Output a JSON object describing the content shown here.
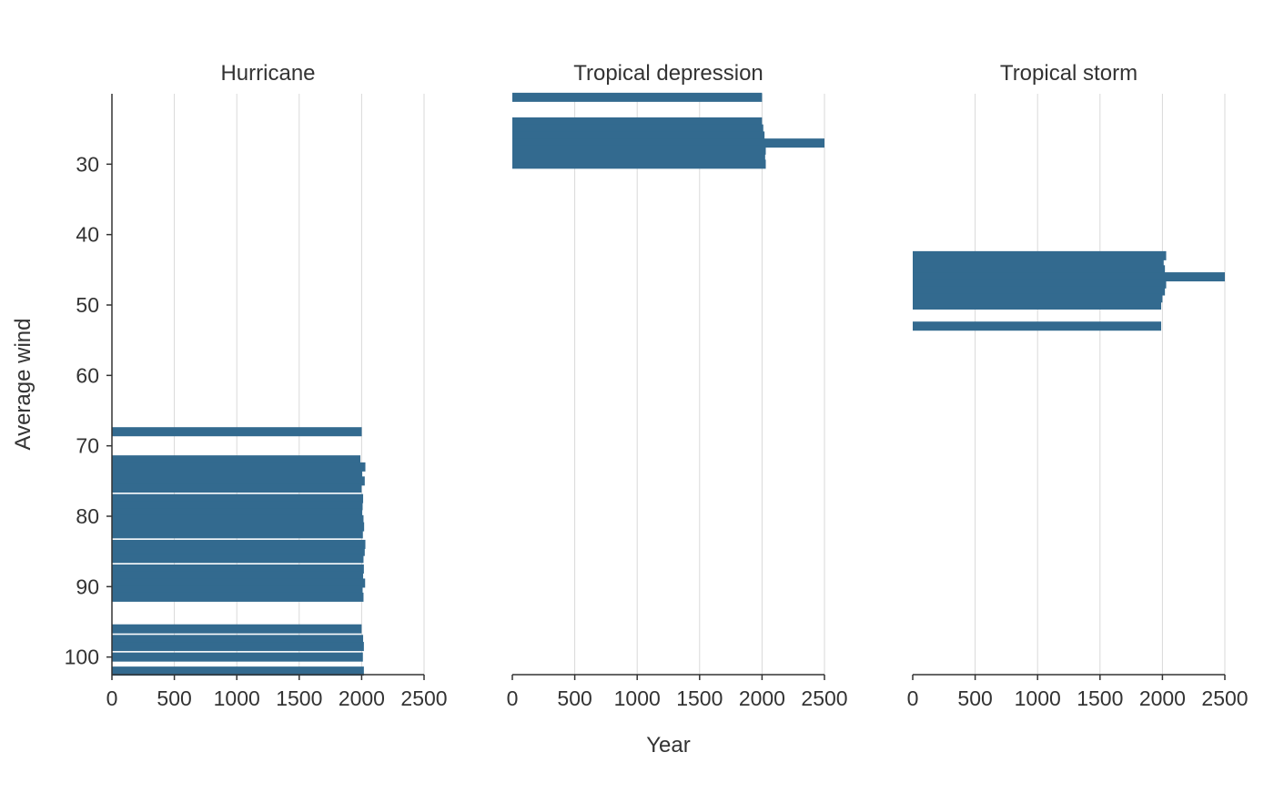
{
  "chart_data": {
    "type": "bar",
    "orientation": "horizontal",
    "xlabel": "Year",
    "ylabel": "Average wind",
    "xlim": [
      0,
      2500
    ],
    "ylim": [
      102.5,
      20
    ],
    "x_ticks": [
      0,
      500,
      1000,
      1500,
      2000,
      2500
    ],
    "y_ticks": [
      30,
      40,
      50,
      60,
      70,
      80,
      90,
      100
    ],
    "grid": "vertical",
    "bar_color": "#336a8f",
    "facets": [
      {
        "title": "Hurricane",
        "bars": [
          {
            "wind": 68.0,
            "year": 2001
          },
          {
            "wind": 72.0,
            "year": 1990
          },
          {
            "wind": 73.0,
            "year": 2030
          },
          {
            "wind": 74.0,
            "year": 2005
          },
          {
            "wind": 75.0,
            "year": 2025
          },
          {
            "wind": 76.0,
            "year": 2000
          },
          {
            "wind": 77.5,
            "year": 2012
          },
          {
            "wind": 78.5,
            "year": 2008
          },
          {
            "wind": 79.5,
            "year": 2005
          },
          {
            "wind": 80.5,
            "year": 2015
          },
          {
            "wind": 81.5,
            "year": 2020
          },
          {
            "wind": 82.5,
            "year": 2010
          },
          {
            "wind": 84.0,
            "year": 2030
          },
          {
            "wind": 85.0,
            "year": 2025
          },
          {
            "wind": 86.0,
            "year": 2015
          },
          {
            "wind": 87.5,
            "year": 2018
          },
          {
            "wind": 88.5,
            "year": 2012
          },
          {
            "wind": 89.5,
            "year": 2028
          },
          {
            "wind": 90.5,
            "year": 2008
          },
          {
            "wind": 91.5,
            "year": 2015
          },
          {
            "wind": 96.0,
            "year": 2000
          },
          {
            "wind": 97.5,
            "year": 2012
          },
          {
            "wind": 98.5,
            "year": 2018
          },
          {
            "wind": 100.0,
            "year": 2010
          },
          {
            "wind": 102.0,
            "year": 2018
          }
        ]
      },
      {
        "title": "Tropical depression",
        "bars": [
          {
            "wind": 20.5,
            "year": 2000
          },
          {
            "wind": 24.0,
            "year": 2000
          },
          {
            "wind": 25.0,
            "year": 2010
          },
          {
            "wind": 26.0,
            "year": 2020
          },
          {
            "wind": 27.0,
            "year": 2500
          },
          {
            "wind": 28.0,
            "year": 2030
          },
          {
            "wind": 29.0,
            "year": 2025
          },
          {
            "wind": 30.0,
            "year": 2030
          }
        ]
      },
      {
        "title": "Tropical storm",
        "bars": [
          {
            "wind": 43.0,
            "year": 2030
          },
          {
            "wind": 44.0,
            "year": 2010
          },
          {
            "wind": 45.0,
            "year": 2020
          },
          {
            "wind": 46.0,
            "year": 2500
          },
          {
            "wind": 47.0,
            "year": 2030
          },
          {
            "wind": 48.0,
            "year": 2020
          },
          {
            "wind": 49.0,
            "year": 2000
          },
          {
            "wind": 50.0,
            "year": 1990
          },
          {
            "wind": 53.0,
            "year": 1990
          }
        ]
      }
    ]
  }
}
